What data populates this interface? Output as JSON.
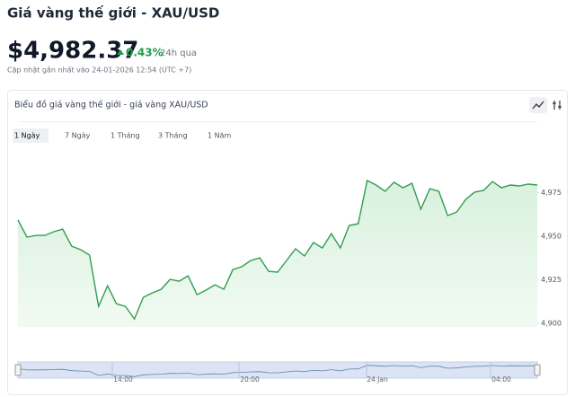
{
  "header": {
    "title": "Giá vàng thế giới - XAU/USD",
    "price": "$4,982.37",
    "change": "0.43%",
    "change_period": "24h qua",
    "updated": "Cập nhật gần nhất vào 24-01-2026 12:54 (UTC +7)"
  },
  "tabs": [
    "1 Ngày",
    "7 Ngày",
    "1 Tháng",
    "3 Tháng",
    "1 Năm"
  ],
  "navigator": {
    "labels": [
      "14:00",
      "20:00",
      "24 Jan",
      "04:00"
    ]
  },
  "chart_data": {
    "type": "line",
    "title": "Biểu đồ giá vàng thế giới - giá vàng XAU/USD",
    "color": "#2e9e4f",
    "values": [
      4959.3,
      4949.5,
      4950.5,
      4950.5,
      4952.6,
      4954.1,
      4944.3,
      4942.3,
      4939.2,
      4909.8,
      4921.6,
      4911.3,
      4909.8,
      4902.6,
      4915,
      4917.5,
      4919.6,
      4925.3,
      4924.2,
      4927.3,
      4916.5,
      4919.1,
      4922.2,
      4919.6,
      4930.9,
      4932.5,
      4936.1,
      4937.6,
      4929.9,
      4929.4,
      4936.1,
      4942.8,
      4938.7,
      4946.4,
      4943.3,
      4951.5,
      4943.3,
      4956.2,
      4957.2,
      4982,
      4979.4,
      4975.8,
      4981,
      4977.8,
      4980.4,
      4965.5,
      4977.3,
      4975.8,
      4961.9,
      4963.9,
      4971.1,
      4975.3,
      4976.3,
      4981.4,
      4977.8,
      4979.4,
      4978.9,
      4979.9,
      4979.4
    ],
    "ylim": [
      4898,
      5000
    ],
    "yticks": [
      {
        "value": 4900,
        "label": "4,900"
      },
      {
        "value": 4925,
        "label": "4,925"
      },
      {
        "value": 4950,
        "label": "4,950"
      },
      {
        "value": 4975,
        "label": "4,975"
      }
    ]
  }
}
